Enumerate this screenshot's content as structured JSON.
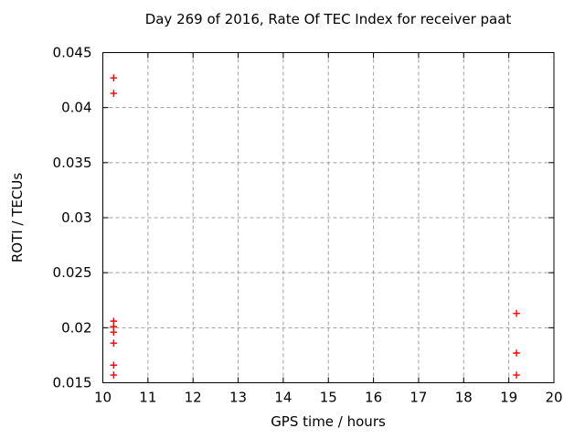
{
  "chart_data": {
    "type": "scatter",
    "title": "Day 269 of 2016, Rate Of TEC Index for receiver paat",
    "xlabel": "GPS time / hours",
    "ylabel": "ROTI / TECUs",
    "xlim": [
      10,
      20
    ],
    "ylim": [
      0.015,
      0.045
    ],
    "xticks": [
      10,
      11,
      12,
      13,
      14,
      15,
      16,
      17,
      18,
      19,
      20
    ],
    "xtick_labels": [
      "10",
      "11",
      "12",
      "13",
      "14",
      "15",
      "16",
      "17",
      "18",
      "19",
      "20"
    ],
    "yticks": [
      0.015,
      0.02,
      0.025,
      0.03,
      0.035,
      0.04,
      0.045
    ],
    "ytick_labels": [
      "0.015",
      "0.02",
      "0.025",
      "0.03",
      "0.035",
      "0.04",
      "0.045"
    ],
    "grid": true,
    "grid_style": "dashed",
    "grid_color": "#a0a0a0",
    "axis_color": "#000000",
    "marker": "plus",
    "marker_color": "#ff0000",
    "legend": false,
    "series": [
      {
        "name": "ROTI",
        "points": [
          [
            10.24,
            0.0427
          ],
          [
            10.24,
            0.0413
          ],
          [
            10.24,
            0.0206
          ],
          [
            10.24,
            0.0201
          ],
          [
            10.24,
            0.0196
          ],
          [
            10.24,
            0.0186
          ],
          [
            10.24,
            0.0166
          ],
          [
            10.24,
            0.0157
          ],
          [
            19.17,
            0.0213
          ],
          [
            19.17,
            0.0177
          ],
          [
            19.17,
            0.0157
          ]
        ]
      }
    ]
  }
}
